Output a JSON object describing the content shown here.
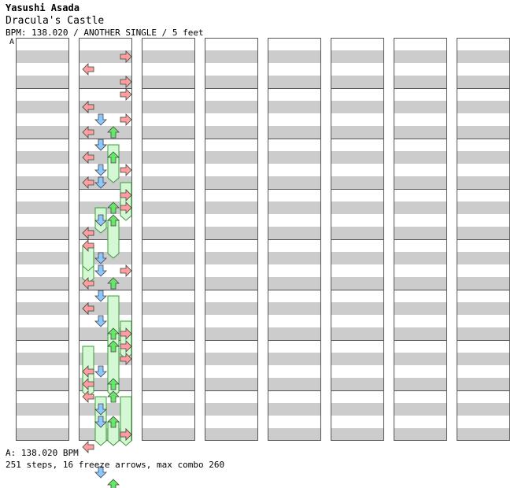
{
  "header": {
    "artist": "Yasushi Asada",
    "title": "Dracula's Castle",
    "info": "BPM: 138.020 / ANOTHER SINGLE / 5 feet",
    "marker": "A"
  },
  "footer": {
    "bpm_line": "A: 138.020 BPM",
    "stats": "251 steps, 16 freeze arrows, max combo 260"
  },
  "colors": {
    "left": "#ff9e9e",
    "down": "#8cc8ff",
    "up": "#66e866",
    "right": "#ff9e9e",
    "special": "#ffc0ff",
    "freeze": "#d4f8d4",
    "stripe": "#cccccc"
  },
  "chart_data": {
    "type": "step-chart",
    "columns": 8,
    "measures_per_column": 8,
    "lanes": [
      "left",
      "down",
      "up",
      "right"
    ],
    "notes": [
      [
        1,
        0,
        1,
        3
      ],
      [
        1,
        0,
        2,
        0
      ],
      [
        1,
        0,
        3,
        3
      ],
      [
        1,
        0,
        5,
        0
      ],
      [
        1,
        0,
        6,
        3
      ],
      [
        1,
        0,
        7,
        0
      ],
      [
        1,
        1,
        0,
        3
      ],
      [
        1,
        1,
        1,
        0
      ],
      [
        1,
        1,
        2,
        1
      ],
      [
        1,
        1,
        3,
        2
      ],
      [
        1,
        1,
        4,
        1
      ],
      [
        1,
        1,
        5,
        0
      ],
      [
        1,
        1,
        6,
        3
      ],
      [
        1,
        1,
        7,
        1
      ],
      [
        1,
        2,
        0,
        1
      ],
      [
        1,
        2,
        1,
        2
      ],
      [
        1,
        2,
        2,
        1
      ],
      [
        1,
        2,
        3,
        0
      ],
      [
        1,
        2,
        5,
        3
      ],
      [
        1,
        2,
        6,
        2
      ],
      [
        1,
        2,
        7,
        0
      ],
      [
        1,
        3,
        0,
        3
      ],
      [
        1,
        3,
        1,
        2
      ],
      [
        1,
        3,
        2,
        1
      ],
      [
        1,
        3,
        3,
        0
      ],
      [
        1,
        3,
        5,
        1
      ],
      [
        1,
        3,
        6,
        1
      ],
      [
        1,
        3,
        7,
        0
      ],
      [
        1,
        4,
        0,
        0
      ],
      [
        1,
        4,
        2,
        3
      ],
      [
        1,
        4,
        3,
        2
      ],
      [
        1,
        4,
        5,
        0
      ],
      [
        1,
        4,
        6,
        1
      ],
      [
        1,
        4,
        7,
        3
      ],
      [
        1,
        5,
        0,
        1
      ],
      [
        1,
        5,
        1,
        0
      ],
      [
        1,
        5,
        3,
        2
      ],
      [
        1,
        5,
        4,
        3
      ],
      [
        1,
        5,
        6,
        0
      ],
      [
        1,
        5,
        7,
        2
      ],
      [
        1,
        6,
        0,
        2
      ],
      [
        1,
        6,
        1,
        3
      ],
      [
        1,
        6,
        2,
        1
      ],
      [
        1,
        6,
        3,
        0
      ],
      [
        1,
        6,
        4,
        2
      ],
      [
        1,
        6,
        6,
        1
      ],
      [
        1,
        6,
        7,
        3
      ],
      [
        1,
        7,
        0,
        0
      ],
      [
        1,
        7,
        1,
        1
      ],
      [
        1,
        7,
        2,
        2
      ],
      [
        1,
        7,
        3,
        3
      ],
      [
        1,
        7,
        4,
        0
      ],
      [
        1,
        7,
        6,
        1
      ],
      [
        1,
        7,
        7,
        2
      ]
    ],
    "freezes": [
      [
        1,
        2,
        0,
        2,
        3
      ],
      [
        1,
        2,
        3,
        3,
        3
      ],
      [
        1,
        3,
        2,
        2,
        3
      ],
      [
        1,
        4,
        0,
        0,
        3
      ],
      [
        1,
        4,
        4,
        2,
        3
      ],
      [
        1,
        5,
        0,
        2,
        6
      ],
      [
        1,
        5,
        2,
        3,
        3
      ],
      [
        1,
        6,
        0,
        0,
        3
      ],
      [
        1,
        6,
        4,
        3,
        4
      ],
      [
        1,
        6,
        7,
        2,
        6
      ],
      [
        1,
        7,
        0,
        1,
        4
      ],
      [
        1,
        7,
        2,
        2,
        4
      ],
      [
        1,
        2,
        5,
        1,
        2
      ],
      [
        1,
        3,
        4,
        0,
        2
      ],
      [
        1,
        5,
        4,
        2,
        4
      ],
      [
        1,
        6,
        2,
        0,
        2
      ]
    ]
  }
}
